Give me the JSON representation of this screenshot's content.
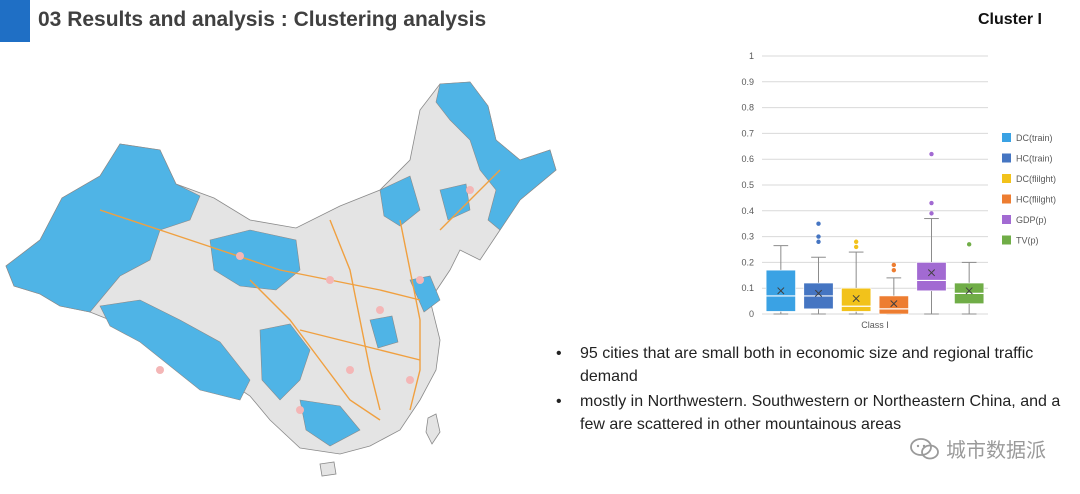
{
  "header": {
    "title": "03 Results and analysis : Clustering analysis",
    "cluster_label": "Cluster I"
  },
  "colors": {
    "accent": "#1f6fc5",
    "cluster_region": "#4fb4e6",
    "other_region": "#e4e4e4",
    "rail_lines": "#f0a040"
  },
  "bullets": [
    "95 cities that are small both in economic size and regional traffic demand",
    "mostly in Northwestern. Southwestern or Northeastern China, and a few are scattered in other mountainous areas"
  ],
  "watermark": {
    "text": "城市数据派",
    "icon": "wechat-icon"
  },
  "chart_data": {
    "type": "box",
    "categories": [
      "Class I"
    ],
    "xlabel": "Class I",
    "ylim": [
      0,
      1
    ],
    "yticks": [
      "0",
      "0.1",
      "0.2",
      "0.3",
      "0.4",
      "0.5",
      "0.6",
      "0.7",
      "0.8",
      "0.9",
      "1"
    ],
    "grid": true,
    "legend_position": "right",
    "series": [
      {
        "name": "DC(train)",
        "color": "#3aa2e4",
        "min": 0,
        "q1": 0.01,
        "median": 0.07,
        "q3": 0.17,
        "max": 0.265,
        "mean": 0.09,
        "outliers": []
      },
      {
        "name": "HC(train)",
        "color": "#4575c2",
        "min": 0,
        "q1": 0.02,
        "median": 0.07,
        "q3": 0.12,
        "max": 0.22,
        "mean": 0.08,
        "outliers": [
          0.28,
          0.3,
          0.35
        ]
      },
      {
        "name": "DC(flilght)",
        "color": "#f2c21b",
        "min": 0,
        "q1": 0.01,
        "median": 0.03,
        "q3": 0.1,
        "max": 0.24,
        "mean": 0.06,
        "outliers": [
          0.26,
          0.28
        ]
      },
      {
        "name": "HC(flilght)",
        "color": "#ed7d31",
        "min": 0,
        "q1": 0.0,
        "median": 0.02,
        "q3": 0.07,
        "max": 0.14,
        "mean": 0.04,
        "outliers": [
          0.17,
          0.19
        ]
      },
      {
        "name": "GDP(p)",
        "color": "#a26ad2",
        "min": 0,
        "q1": 0.09,
        "median": 0.13,
        "q3": 0.2,
        "max": 0.37,
        "mean": 0.16,
        "outliers": [
          0.39,
          0.43,
          0.62
        ]
      },
      {
        "name": "TV(p)",
        "color": "#70ad47",
        "min": 0,
        "q1": 0.04,
        "median": 0.08,
        "q3": 0.12,
        "max": 0.2,
        "mean": 0.09,
        "outliers": [
          0.27
        ]
      }
    ]
  }
}
